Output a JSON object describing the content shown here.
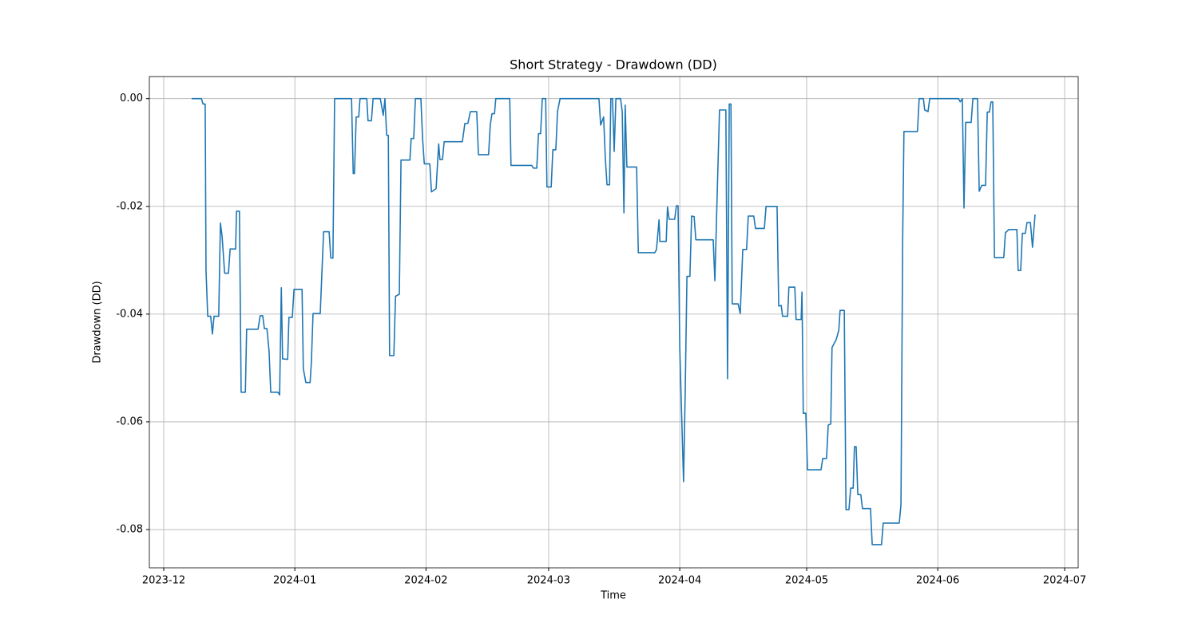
{
  "chart_data": {
    "type": "line",
    "title": "Short Strategy - Drawdown (DD)",
    "x_label": "Time",
    "y_label": "Drawdown (DD)",
    "x": [
      6.6,
      8.9,
      9.3,
      9.8,
      10.0,
      10.4,
      11.1,
      11.5,
      11.9,
      13.0,
      13.4,
      13.8,
      14.4,
      15.3,
      15.7,
      17.0,
      17.2,
      17.9,
      18.3,
      19.3,
      19.6,
      22.3,
      22.8,
      23.4,
      23.8,
      24.4,
      24.9,
      25.3,
      27.0,
      27.4,
      27.8,
      28.1,
      29.3,
      29.6,
      30.4,
      30.8,
      32.7,
      33.0,
      33.6,
      34.6,
      34.9,
      35.3,
      37.0,
      37.8,
      39.1,
      39.5,
      40.0,
      40.4,
      44.4,
      44.8,
      45.1,
      45.5,
      46.1,
      46.4,
      48.0,
      48.3,
      49.1,
      49.5,
      51.2,
      51.9,
      52.3,
      52.7,
      53.1,
      53.4,
      54.4,
      54.8,
      55.7,
      56.1,
      58.2,
      58.5,
      59.1,
      59.5,
      60.8,
      61.2,
      61.6,
      62.9,
      63.3,
      64.4,
      65.0,
      65.3,
      65.9,
      66.3,
      70.6,
      71.2,
      71.9,
      72.5,
      74.0,
      74.4,
      76.8,
      77.2,
      77.6,
      78.2,
      78.5,
      81.8,
      82.1,
      87.0,
      87.4,
      88.2,
      88.6,
      89.1,
      89.5,
      90.3,
      90.6,
      91.6,
      92.0,
      92.7,
      93.1,
      93.7,
      102.9,
      103.3,
      104.0,
      104.4,
      104.8,
      105.4,
      105.7,
      106.1,
      106.5,
      106.9,
      108.0,
      108.4,
      108.8,
      109.1,
      109.5,
      111.8,
      112.2,
      116.1,
      116.5,
      117.1,
      117.3,
      118.8,
      119.1,
      119.5,
      120.8,
      121.2,
      121.6,
      122.0,
      122.4,
      122.9,
      123.3,
      123.7,
      124.4,
      124.8,
      125.4,
      125.8,
      129.9,
      130.3,
      130.9,
      131.4,
      132.9,
      133.3,
      133.7,
      134.1,
      134.4,
      135.8,
      136.3,
      136.9,
      137.8,
      138.2,
      139.5,
      139.9,
      142.0,
      142.4,
      145.0,
      145.4,
      146.0,
      146.3,
      147.5,
      147.8,
      149.2,
      149.5,
      150.7,
      150.9,
      151.2,
      151.8,
      152.2,
      155.4,
      155.8,
      156.7,
      157.1,
      157.7,
      158.0,
      159.0,
      159.6,
      159.9,
      160.9,
      161.3,
      162.0,
      162.4,
      163.0,
      163.3,
      163.7,
      164.1,
      164.8,
      165.2,
      167.1,
      167.5,
      169.7,
      170.1,
      173.9,
      174.3,
      174.7,
      175.0,
      178.2,
      178.6,
      179.6,
      179.9,
      180.7,
      181.1,
      187.9,
      188.3,
      188.8,
      189.2,
      189.6,
      190.9,
      191.3,
      192.4,
      192.8,
      193.4,
      194.3,
      194.7,
      195.2,
      195.6,
      196.0,
      196.4,
      198.6,
      199.0,
      199.8,
      201.7,
      202.0,
      202.6,
      203.0,
      203.7,
      204.1,
      204.9,
      205.4,
      206.0
    ],
    "series": [
      {
        "name": "Drawdown (DD)",
        "color": "#1f77b4",
        "values": [
          0,
          0,
          -0.001,
          -0.001,
          -0.032,
          -0.0404,
          -0.0404,
          -0.0437,
          -0.0404,
          -0.0404,
          -0.0231,
          -0.0256,
          -0.0324,
          -0.0324,
          -0.0279,
          -0.0279,
          -0.0209,
          -0.0209,
          -0.0545,
          -0.0545,
          -0.0428,
          -0.0428,
          -0.0403,
          -0.0403,
          -0.0427,
          -0.0427,
          -0.0468,
          -0.0545,
          -0.0545,
          -0.055,
          -0.0351,
          -0.0483,
          -0.0484,
          -0.0406,
          -0.0406,
          -0.0354,
          -0.0354,
          -0.0501,
          -0.0527,
          -0.0527,
          -0.049,
          -0.0399,
          -0.0399,
          -0.0247,
          -0.0247,
          -0.0296,
          -0.0296,
          0,
          0,
          -0.0139,
          -0.0139,
          -0.0034,
          -0.0034,
          0,
          0,
          -0.0041,
          -0.0041,
          0,
          0,
          -0.0031,
          0,
          -0.0068,
          -0.0068,
          -0.0477,
          -0.0477,
          -0.0367,
          -0.0363,
          -0.0114,
          -0.0114,
          -0.0074,
          -0.0074,
          0,
          0,
          -0.0074,
          -0.0121,
          -0.0121,
          -0.0173,
          -0.0167,
          -0.0084,
          -0.0113,
          -0.0113,
          -0.008,
          -0.008,
          -0.0046,
          -0.0046,
          -0.0024,
          -0.0024,
          -0.0104,
          -0.0104,
          -0.0049,
          -0.0028,
          -0.0028,
          0,
          0,
          -0.0124,
          -0.0124,
          -0.0129,
          -0.0129,
          -0.0065,
          -0.0065,
          0,
          0,
          -0.0164,
          -0.0164,
          -0.0095,
          -0.0095,
          -0.0024,
          0,
          0,
          -0.0049,
          -0.0034,
          -0.0111,
          -0.016,
          -0.016,
          0,
          0,
          -0.0098,
          0,
          0,
          -0.0024,
          -0.0212,
          -0.0012,
          -0.0127,
          -0.0127,
          -0.0286,
          -0.0286,
          -0.028,
          -0.0225,
          -0.0265,
          -0.0265,
          -0.0201,
          -0.0224,
          -0.0224,
          -0.0199,
          -0.0199,
          -0.0462,
          -0.0576,
          -0.0711,
          -0.0539,
          -0.033,
          -0.033,
          -0.0218,
          -0.0219,
          -0.0262,
          -0.0262,
          -0.0338,
          -0.0163,
          -0.0021,
          -0.0021,
          -0.052,
          -0.001,
          -0.001,
          -0.0381,
          -0.0381,
          -0.0399,
          -0.028,
          -0.028,
          -0.0218,
          -0.0218,
          -0.0241,
          -0.0241,
          -0.02,
          -0.02,
          -0.0385,
          -0.0384,
          -0.0404,
          -0.0404,
          -0.035,
          -0.035,
          -0.041,
          -0.041,
          -0.0359,
          -0.0584,
          -0.0584,
          -0.0689,
          -0.0689,
          -0.0668,
          -0.0668,
          -0.0606,
          -0.0604,
          -0.0462,
          -0.0447,
          -0.043,
          -0.0393,
          -0.0393,
          -0.0763,
          -0.0763,
          -0.0723,
          -0.0723,
          -0.0646,
          -0.0646,
          -0.0735,
          -0.0735,
          -0.0761,
          -0.0761,
          -0.0828,
          -0.0828,
          -0.0788,
          -0.0788,
          -0.0753,
          -0.0261,
          -0.0061,
          -0.0061,
          0,
          0,
          -0.0021,
          -0.0024,
          0,
          0,
          -0.0006,
          0,
          -0.0203,
          -0.0044,
          -0.0044,
          0,
          0,
          -0.0172,
          -0.0161,
          -0.0161,
          -0.0025,
          -0.0025,
          -0.0006,
          -0.0006,
          -0.0295,
          -0.0295,
          -0.0249,
          -0.0243,
          -0.0243,
          -0.0319,
          -0.0319,
          -0.025,
          -0.025,
          -0.023,
          -0.023,
          -0.0276,
          -0.0215
        ]
      }
    ],
    "xlim": [
      -3.4,
      216.2
    ],
    "xticks": [
      {
        "value": 0,
        "label": "2023-12"
      },
      {
        "value": 31,
        "label": "2024-01"
      },
      {
        "value": 62,
        "label": "2024-02"
      },
      {
        "value": 91,
        "label": "2024-03"
      },
      {
        "value": 122,
        "label": "2024-04"
      },
      {
        "value": 152,
        "label": "2024-05"
      },
      {
        "value": 183,
        "label": "2024-06"
      },
      {
        "value": 213,
        "label": "2024-07"
      }
    ],
    "ylim": [
      -0.0871,
      0.0041
    ],
    "yticks": [
      {
        "value": 0,
        "label": "0.00"
      },
      {
        "value": -0.02,
        "label": "-0.02"
      },
      {
        "value": -0.04,
        "label": "-0.04"
      },
      {
        "value": -0.06,
        "label": "-0.06"
      },
      {
        "value": -0.08,
        "label": "-0.08"
      }
    ],
    "grid": true
  }
}
